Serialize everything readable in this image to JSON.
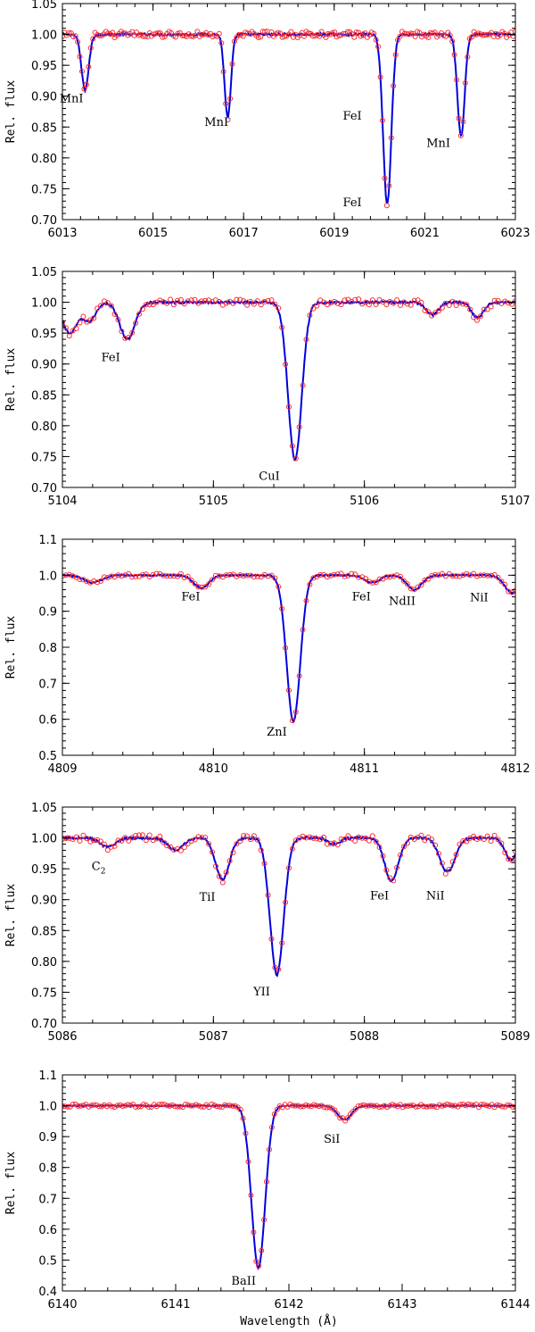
{
  "chart_data": [
    {
      "type": "line",
      "xlim": [
        6013,
        6023
      ],
      "ylim": [
        0.7,
        1.05
      ],
      "xticks": [
        6013,
        6015,
        6017,
        6019,
        6021,
        6023
      ],
      "xtick_labels": [
        "6013",
        "6015",
        "6017",
        "6019",
        "6021",
        "6023"
      ],
      "yticks": [
        0.7,
        0.75,
        0.8,
        0.85,
        0.9,
        0.95,
        1.0,
        1.05
      ],
      "ytick_labels": [
        "0.70",
        "0.75",
        "0.80",
        "0.85",
        "0.90",
        "0.95",
        "1.00",
        "1.05"
      ],
      "xlabel": "",
      "ylabel": "Rel. flux",
      "continuum": 1.0,
      "lines": [
        {
          "x": 6013.5,
          "depth": 0.09,
          "width": 0.08
        },
        {
          "x": 6016.65,
          "depth": 0.135,
          "width": 0.07
        },
        {
          "x": 6020.17,
          "depth": 0.275,
          "width": 0.09
        },
        {
          "x": 6021.8,
          "depth": 0.165,
          "width": 0.08
        }
      ],
      "labels": [
        {
          "text": "MnI",
          "x": 6013.2,
          "y": 0.89
        },
        {
          "text": "MnI",
          "x": 6016.4,
          "y": 0.852
        },
        {
          "text": "FeI",
          "x": 6019.4,
          "y": 0.862
        },
        {
          "text": "FeI",
          "x": 6019.4,
          "y": 0.722
        },
        {
          "text": "MnI",
          "x": 6021.3,
          "y": 0.818
        }
      ],
      "series": [
        {
          "type": "observed",
          "style": "circles",
          "color": "#ff2a2a"
        },
        {
          "type": "synthetic",
          "style": "line",
          "color": "#0000dd"
        }
      ]
    },
    {
      "type": "line",
      "xlim": [
        5104,
        5107
      ],
      "ylim": [
        0.7,
        1.05
      ],
      "xticks": [
        5104,
        5105,
        5106,
        5107
      ],
      "xtick_labels": [
        "5104",
        "5105",
        "5106",
        "5107"
      ],
      "yticks": [
        0.7,
        0.75,
        0.8,
        0.85,
        0.9,
        0.95,
        1.0,
        1.05
      ],
      "ytick_labels": [
        "0.70",
        "0.75",
        "0.80",
        "0.85",
        "0.90",
        "0.95",
        "1.00",
        "1.05"
      ],
      "xlabel": "",
      "ylabel": "Rel. flux",
      "continuum": 1.0,
      "lines": [
        {
          "x": 5104.05,
          "depth": 0.05,
          "width": 0.05
        },
        {
          "x": 5104.18,
          "depth": 0.03,
          "width": 0.04
        },
        {
          "x": 5104.43,
          "depth": 0.06,
          "width": 0.05
        },
        {
          "x": 5105.54,
          "depth": 0.255,
          "width": 0.045
        },
        {
          "x": 5106.45,
          "depth": 0.02,
          "width": 0.04
        },
        {
          "x": 5106.75,
          "depth": 0.025,
          "width": 0.04
        }
      ],
      "labels": [
        {
          "text": "FeI",
          "x": 5104.32,
          "y": 0.905
        },
        {
          "text": "CuI",
          "x": 5105.37,
          "y": 0.712
        }
      ],
      "series": [
        {
          "type": "observed",
          "style": "circles",
          "color": "#ff2a2a"
        },
        {
          "type": "synthetic",
          "style": "line",
          "color": "#0000dd"
        }
      ]
    },
    {
      "type": "line",
      "xlim": [
        4809,
        4812
      ],
      "ylim": [
        0.5,
        1.1
      ],
      "xticks": [
        4809,
        4810,
        4811,
        4812
      ],
      "xtick_labels": [
        "4809",
        "4810",
        "4811",
        "4812"
      ],
      "yticks": [
        0.5,
        0.6,
        0.7,
        0.8,
        0.9,
        1.0,
        1.1
      ],
      "ytick_labels": [
        "0.5",
        "0.6",
        "0.7",
        "0.8",
        "0.9",
        "1.0",
        "1.1"
      ],
      "xlabel": "",
      "ylabel": "Rel. flux",
      "continuum": 1.0,
      "lines": [
        {
          "x": 4809.2,
          "depth": 0.02,
          "width": 0.06
        },
        {
          "x": 4809.92,
          "depth": 0.035,
          "width": 0.05
        },
        {
          "x": 4810.53,
          "depth": 0.405,
          "width": 0.045
        },
        {
          "x": 4811.05,
          "depth": 0.02,
          "width": 0.05
        },
        {
          "x": 4811.33,
          "depth": 0.04,
          "width": 0.05
        },
        {
          "x": 4811.98,
          "depth": 0.05,
          "width": 0.05
        }
      ],
      "labels": [
        {
          "text": "FeI",
          "x": 4809.85,
          "y": 0.93
        },
        {
          "text": "ZnI",
          "x": 4810.42,
          "y": 0.555
        },
        {
          "text": "FeI",
          "x": 4810.98,
          "y": 0.93
        },
        {
          "text": "NdII",
          "x": 4811.25,
          "y": 0.918
        },
        {
          "text": "NiI",
          "x": 4811.76,
          "y": 0.928
        }
      ],
      "series": [
        {
          "type": "observed",
          "style": "circles",
          "color": "#ff2a2a"
        },
        {
          "type": "synthetic",
          "style": "line",
          "color": "#0000dd"
        }
      ]
    },
    {
      "type": "line",
      "xlim": [
        5086,
        5089
      ],
      "ylim": [
        0.7,
        1.05
      ],
      "xticks": [
        5086,
        5087,
        5088,
        5089
      ],
      "xtick_labels": [
        "5086",
        "5087",
        "5088",
        "5089"
      ],
      "yticks": [
        0.7,
        0.75,
        0.8,
        0.85,
        0.9,
        0.95,
        1.0,
        1.05
      ],
      "ytick_labels": [
        "0.70",
        "0.75",
        "0.80",
        "0.85",
        "0.90",
        "0.95",
        "1.00",
        "1.05"
      ],
      "xlabel": "",
      "ylabel": "Rel. flux",
      "continuum": 1.0,
      "lines": [
        {
          "x": 5086.3,
          "depth": 0.015,
          "width": 0.05
        },
        {
          "x": 5086.75,
          "depth": 0.02,
          "width": 0.05
        },
        {
          "x": 5087.06,
          "depth": 0.068,
          "width": 0.045
        },
        {
          "x": 5087.42,
          "depth": 0.222,
          "width": 0.045
        },
        {
          "x": 5087.8,
          "depth": 0.01,
          "width": 0.04
        },
        {
          "x": 5088.18,
          "depth": 0.07,
          "width": 0.045
        },
        {
          "x": 5088.55,
          "depth": 0.055,
          "width": 0.05
        },
        {
          "x": 5088.97,
          "depth": 0.035,
          "width": 0.04
        }
      ],
      "labels": [
        {
          "text": "C",
          "sub": "2",
          "x": 5086.24,
          "y": 0.948
        },
        {
          "text": "TiI",
          "x": 5086.96,
          "y": 0.898
        },
        {
          "text": "YII",
          "x": 5087.32,
          "y": 0.745
        },
        {
          "text": "FeI",
          "x": 5088.1,
          "y": 0.9
        },
        {
          "text": "NiI",
          "x": 5088.47,
          "y": 0.9
        }
      ],
      "series": [
        {
          "type": "observed",
          "style": "circles",
          "color": "#ff2a2a"
        },
        {
          "type": "synthetic",
          "style": "line",
          "color": "#0000dd"
        }
      ]
    },
    {
      "type": "line",
      "xlim": [
        6140,
        6144
      ],
      "ylim": [
        0.4,
        1.1
      ],
      "xticks": [
        6140,
        6141,
        6142,
        6143,
        6144
      ],
      "xtick_labels": [
        "6140",
        "6141",
        "6142",
        "6143",
        "6144"
      ],
      "yticks": [
        0.4,
        0.5,
        0.6,
        0.7,
        0.8,
        0.9,
        1.0,
        1.1
      ],
      "ytick_labels": [
        "0.4",
        "0.5",
        "0.6",
        "0.7",
        "0.8",
        "0.9",
        "1.0",
        "1.1"
      ],
      "xlabel": "Wavelength (Å)",
      "ylabel": "Rel. flux",
      "continuum": 1.0,
      "lines": [
        {
          "x": 6141.73,
          "depth": 0.525,
          "width": 0.06
        },
        {
          "x": 6142.49,
          "depth": 0.045,
          "width": 0.06
        }
      ],
      "labels": [
        {
          "text": "BaII",
          "x": 6141.6,
          "y": 0.42
        },
        {
          "text": "SiI",
          "x": 6142.38,
          "y": 0.88
        }
      ],
      "series": [
        {
          "type": "observed",
          "style": "circles",
          "color": "#ff2a2a"
        },
        {
          "type": "synthetic",
          "style": "line",
          "color": "#0000dd"
        }
      ]
    }
  ]
}
